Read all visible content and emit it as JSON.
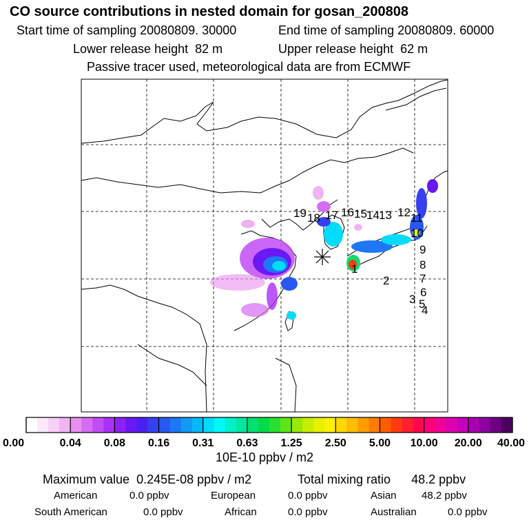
{
  "title": "CO  source contributions in nested domain for gosan_200808",
  "sampling": {
    "start_label": "Start time of sampling",
    "start_value": "20080809. 30000",
    "end_label": "End time of sampling",
    "end_value": "20080809. 60000"
  },
  "release": {
    "lower_label": "Lower release height",
    "lower_value": "82 m",
    "upper_label": "Upper release height",
    "upper_value": "62 m"
  },
  "note": "Passive tracer used, meteorological data are from ECMWF",
  "colorbar": {
    "unit": "10E-10 ppbv / m2",
    "tick_labels": [
      "0.00",
      "0.04",
      "0.08",
      "0.16",
      "0.31",
      "0.63",
      "1.25",
      "2.50",
      "5.00",
      "10.00",
      "20.00",
      "40.00"
    ],
    "colors": [
      "#ffffff",
      "#fbe8fb",
      "#f6d0f6",
      "#f0b4f2",
      "#e890f0",
      "#d66cf2",
      "#c24cf4",
      "#aa30f6",
      "#8c20f6",
      "#6a18f4",
      "#4a20f2",
      "#3640f0",
      "#2858f2",
      "#1c78f4",
      "#1298f6",
      "#06b8f8",
      "#00dcfa",
      "#00f8f4",
      "#00f0c8",
      "#00e8a0",
      "#00e070",
      "#00dc48",
      "#28e030",
      "#60e418",
      "#98e808",
      "#c8ec00",
      "#e8f000",
      "#fff000",
      "#ffd800",
      "#ffbc00",
      "#ff9c00",
      "#ff7c00",
      "#ff5c00",
      "#ff3c10",
      "#ff2030",
      "#ff0850",
      "#ff0078",
      "#f0009a",
      "#dc00b0",
      "#c400b8",
      "#a800b0",
      "#8c00a0",
      "#6c0080",
      "#4c0060"
    ]
  },
  "summary": {
    "max_label": "Maximum value",
    "max_value": "0.245E-08 ppbv / m2",
    "total_label": "Total mixing ratio",
    "total_value": "48.2 ppbv"
  },
  "regions": [
    {
      "name": "American",
      "value": "0.0 ppbv"
    },
    {
      "name": "European",
      "value": "0.0 ppbv"
    },
    {
      "name": "Asian",
      "value": "48.2 ppbv"
    },
    {
      "name": "South American",
      "value": "0.0 ppbv"
    },
    {
      "name": "African",
      "value": "0.0 ppbv"
    },
    {
      "name": "Australian",
      "value": "0.0 ppbv"
    }
  ],
  "chart_data": {
    "type": "heatmap",
    "title": "CO  source contributions in nested domain for gosan_200808",
    "colorbar_unit": "10E-10 ppbv / m2",
    "colorbar_levels": [
      0.0,
      0.04,
      0.08,
      0.16,
      0.31,
      0.63,
      1.25,
      2.5,
      5.0,
      10.0,
      20.0,
      40.0
    ],
    "map_labels": [
      "1",
      "2",
      "3",
      "4",
      "5",
      "6",
      "7",
      "8",
      "9",
      "10",
      "11",
      "12",
      "13",
      "14",
      "15",
      "16",
      "17",
      "18",
      "19"
    ],
    "receptor_marker": "asterisk",
    "grid": true
  }
}
